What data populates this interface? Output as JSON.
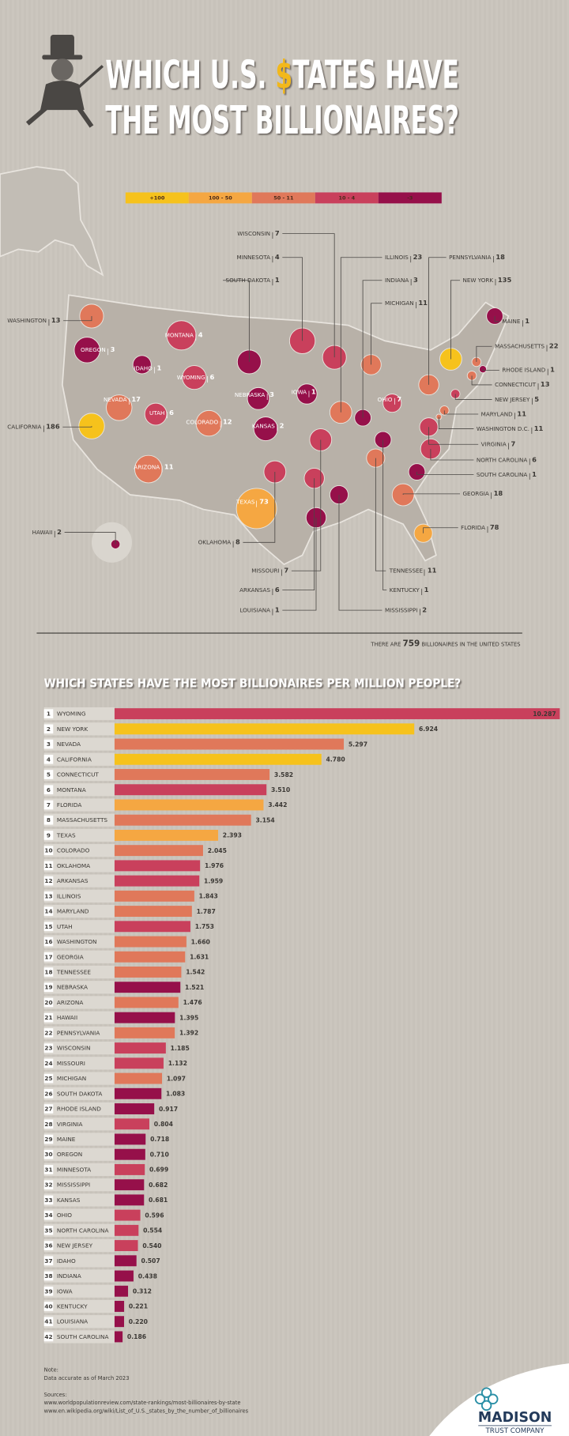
{
  "title": {
    "line1": {
      "pre": "WHICH U.S. ",
      "dollar": "$",
      "post": "TATES HAVE"
    },
    "line2": "THE MOST BILLIONAIRES?"
  },
  "legend": [
    {
      "label": "+100",
      "color": "#f6c21c"
    },
    {
      "label": "100 - 50",
      "color": "#f5a742"
    },
    {
      "label": "50 - 11",
      "color": "#e0785a"
    },
    {
      "label": "10 - 4",
      "color": "#c9405c"
    },
    {
      "label": "-3",
      "color": "#96104a"
    }
  ],
  "map_labels": [
    {
      "state": "WISCONSIN",
      "count": 7,
      "color": "#c9405c"
    },
    {
      "state": "MINNESOTA",
      "count": 4,
      "color": "#c9405c"
    },
    {
      "state": "SOUTH DAKOTA",
      "count": 1,
      "color": "#96104a"
    },
    {
      "state": "ILLINOIS",
      "count": 23,
      "color": "#e0785a"
    },
    {
      "state": "PENNSYLVANIA",
      "count": 18,
      "color": "#e0785a"
    },
    {
      "state": "INDIANA",
      "count": 3,
      "color": "#96104a"
    },
    {
      "state": "NEW YORK",
      "count": 135,
      "color": "#f6c21c"
    },
    {
      "state": "MICHIGAN",
      "count": 11,
      "color": "#e0785a"
    },
    {
      "state": "WASHINGTON",
      "count": 13,
      "color": "#e0785a"
    },
    {
      "state": "MAINE",
      "count": 1,
      "color": "#96104a"
    },
    {
      "state": "MASSACHUSETTS",
      "count": 22,
      "color": "#e0785a"
    },
    {
      "state": "OREGON",
      "count": 3,
      "color": "#96104a"
    },
    {
      "state": "MONTANA",
      "count": 4,
      "color": "#c9405c"
    },
    {
      "state": "IDAHO",
      "count": 1,
      "color": "#96104a"
    },
    {
      "state": "WYOMING",
      "count": 6,
      "color": "#c9405c"
    },
    {
      "state": "NEBRASKA",
      "count": 3,
      "color": "#96104a"
    },
    {
      "state": "IOWA",
      "count": 1,
      "color": "#96104a"
    },
    {
      "state": "OHIO",
      "count": 7,
      "color": "#c9405c"
    },
    {
      "state": "RHODE ISLAND",
      "count": 1,
      "color": "#96104a"
    },
    {
      "state": "CONNECTICUT",
      "count": 13,
      "color": "#e0785a"
    },
    {
      "state": "NEW JERSEY",
      "count": 5,
      "color": "#c9405c"
    },
    {
      "state": "NEVADA",
      "count": 17,
      "color": "#e0785a"
    },
    {
      "state": "UTAH",
      "count": 6,
      "color": "#c9405c"
    },
    {
      "state": "COLORADO",
      "count": 12,
      "color": "#e0785a"
    },
    {
      "state": "KANSAS",
      "count": 2,
      "color": "#96104a"
    },
    {
      "state": "CALIFORNIA",
      "count": 186,
      "color": "#f6c21c"
    },
    {
      "state": "MARYLAND",
      "count": 11,
      "color": "#e0785a"
    },
    {
      "state": "WASHINGTON D.C.",
      "count": 11,
      "color": "#e0785a"
    },
    {
      "state": "ARIZONA",
      "count": 11,
      "color": "#e0785a"
    },
    {
      "state": "VIRGINIA",
      "count": 7,
      "color": "#c9405c"
    },
    {
      "state": "NORTH CAROLINA",
      "count": 6,
      "color": "#c9405c"
    },
    {
      "state": "SOUTH CAROLINA",
      "count": 1,
      "color": "#96104a"
    },
    {
      "state": "GEORGIA",
      "count": 18,
      "color": "#e0785a"
    },
    {
      "state": "TEXAS",
      "count": 73,
      "color": "#f5a742"
    },
    {
      "state": "HAWAII",
      "count": 2,
      "color": "#96104a"
    },
    {
      "state": "FLORIDA",
      "count": 78,
      "color": "#f5a742"
    },
    {
      "state": "OKLAHOMA",
      "count": 8,
      "color": "#c9405c"
    },
    {
      "state": "MISSOURI",
      "count": 7,
      "color": "#c9405c"
    },
    {
      "state": "TENNESSEE",
      "count": 11,
      "color": "#e0785a"
    },
    {
      "state": "ARKANSAS",
      "count": 6,
      "color": "#c9405c"
    },
    {
      "state": "KENTUCKY",
      "count": 1,
      "color": "#96104a"
    },
    {
      "state": "LOUISIANA",
      "count": 1,
      "color": "#96104a"
    },
    {
      "state": "MISSISSIPPI",
      "count": 2,
      "color": "#96104a"
    }
  ],
  "total_note": {
    "pre": "THERE ARE",
    "count": 759,
    "post": "BILLIONAIRES IN THE UNITED STATES"
  },
  "chart_data": {
    "type": "bar",
    "orientation": "horizontal",
    "title": "WHICH STATES HAVE THE MOST BILLIONAIRES PER MILLION PEOPLE?",
    "ranks": [
      1,
      2,
      3,
      4,
      5,
      6,
      7,
      8,
      9,
      10,
      11,
      12,
      13,
      14,
      15,
      16,
      17,
      18,
      19,
      20,
      21,
      22,
      23,
      24,
      25,
      26,
      27,
      28,
      29,
      30,
      31,
      32,
      33,
      34,
      35,
      36,
      37,
      38,
      39,
      40,
      41,
      42
    ],
    "categories": [
      "WYOMING",
      "NEW YORK",
      "NEVADA",
      "CALIFORNIA",
      "CONNECTICUT",
      "MONTANA",
      "FLORIDA",
      "MASSACHUSETTS",
      "TEXAS",
      "COLORADO",
      "OKLAHOMA",
      "ARKANSAS",
      "ILLINOIS",
      "MARYLAND",
      "UTAH",
      "WASHINGTON",
      "GEORGIA",
      "TENNESSEE",
      "NEBRASKA",
      "ARIZONA",
      "HAWAII",
      "PENNSYLVANIA",
      "WISCONSIN",
      "MISSOURI",
      "MICHIGAN",
      "SOUTH DAKOTA",
      "RHODE ISLAND",
      "VIRGINIA",
      "MAINE",
      "OREGON",
      "MINNESOTA",
      "MISSISSIPPI",
      "KANSAS",
      "OHIO",
      "NORTH CAROLINA",
      "NEW JERSEY",
      "IDAHO",
      "INDIANA",
      "IOWA",
      "KENTUCKY",
      "LOUISIANA",
      "SOUTH CAROLINA"
    ],
    "values": [
      10.287,
      6.924,
      5.297,
      4.78,
      3.582,
      3.51,
      3.442,
      3.154,
      2.393,
      2.045,
      1.976,
      1.959,
      1.843,
      1.787,
      1.753,
      1.66,
      1.631,
      1.542,
      1.521,
      1.476,
      1.395,
      1.392,
      1.185,
      1.132,
      1.097,
      1.083,
      0.917,
      0.804,
      0.718,
      0.71,
      0.699,
      0.682,
      0.681,
      0.596,
      0.554,
      0.54,
      0.507,
      0.438,
      0.312,
      0.221,
      0.22,
      0.186
    ],
    "value_labels": [
      "10.287",
      "6.924",
      "5.297",
      "4.780",
      "3.582",
      "3.510",
      "3.442",
      "3.154",
      "2.393",
      "2.045",
      "1.976",
      "1.959",
      "1.843",
      "1.787",
      "1.753",
      "1.660",
      "1.631",
      "1.542",
      "1.521",
      "1.476",
      "1.395",
      "1.392",
      "1.185",
      "1.132",
      "1.097",
      "1.083",
      "0.917",
      "0.804",
      "0.718",
      "0.710",
      "0.699",
      "0.682",
      "0.681",
      "0.596",
      "0.554",
      "0.540",
      "0.507",
      "0.438",
      "0.312",
      "0.221",
      "0.220",
      "0.186"
    ],
    "colors": [
      "#c9405c",
      "#f6c21c",
      "#e0785a",
      "#f6c21c",
      "#e0785a",
      "#c9405c",
      "#f5a742",
      "#e0785a",
      "#f5a742",
      "#e0785a",
      "#c9405c",
      "#c9405c",
      "#e0785a",
      "#e0785a",
      "#c9405c",
      "#e0785a",
      "#e0785a",
      "#e0785a",
      "#96104a",
      "#e0785a",
      "#96104a",
      "#e0785a",
      "#c9405c",
      "#c9405c",
      "#e0785a",
      "#96104a",
      "#96104a",
      "#c9405c",
      "#96104a",
      "#96104a",
      "#c9405c",
      "#96104a",
      "#96104a",
      "#c9405c",
      "#c9405c",
      "#c9405c",
      "#96104a",
      "#96104a",
      "#96104a",
      "#96104a",
      "#96104a",
      "#96104a"
    ],
    "xlim": [
      0,
      10.3
    ]
  },
  "notes": {
    "note_heading": "Note:",
    "note": "Data accurate as of March 2023",
    "sources_heading": "Sources:",
    "sources": [
      "www.worldpopulationreview.com/state-rankings/most-billionaires-by-state",
      "www.en.wikipedia.org/wiki/List_of_U.S._states_by_the_number_of_billionaires"
    ]
  },
  "logo": {
    "name": "MADISON",
    "tagline": "TRUST COMPANY"
  }
}
